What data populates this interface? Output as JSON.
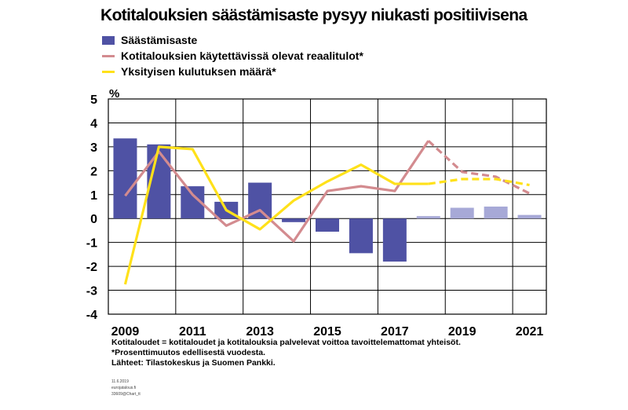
{
  "chart_data": {
    "type": "bar",
    "title": "Kotitalouksien säästämisaste pysyy niukasti positiivisena",
    "ylabel": "%",
    "ylim": [
      -4,
      5
    ],
    "yticks": [
      5,
      4,
      3,
      2,
      1,
      0,
      -1,
      -2,
      -3,
      -4
    ],
    "x": [
      2009,
      2010,
      2011,
      2012,
      2013,
      2014,
      2015,
      2016,
      2017,
      2018,
      2019,
      2020,
      2021
    ],
    "xtick_labels": [
      "2009",
      "2011",
      "2013",
      "2015",
      "2017",
      "2019",
      "2021"
    ],
    "forecast_from": 2018,
    "grid": true,
    "legend_position": "top-left",
    "series": [
      {
        "name": "Säästämisaste",
        "kind": "bar",
        "color": "#4f52a4",
        "forecast_color": "#a7a9d7",
        "values": [
          3.35,
          3.1,
          1.35,
          0.7,
          1.5,
          -0.15,
          -0.55,
          -1.45,
          -1.8,
          0.1,
          0.45,
          0.5,
          0.15
        ]
      },
      {
        "name": "Kotitalouksien käytettävissä olevat reaalitulot*",
        "kind": "line",
        "color": "#d38b8f",
        "values": [
          0.95,
          2.8,
          1.0,
          -0.3,
          0.35,
          -0.95,
          1.15,
          1.35,
          1.15,
          3.25,
          1.95,
          1.75,
          1.05
        ]
      },
      {
        "name": "Yksityisen kulutuksen määrä*",
        "kind": "line",
        "color": "#ffe11a",
        "values": [
          -2.75,
          3.0,
          2.9,
          0.35,
          -0.45,
          0.75,
          1.55,
          2.25,
          1.45,
          1.45,
          1.65,
          1.65,
          1.4
        ]
      }
    ]
  },
  "notes": {
    "line1": "Kotitaloudet = kotitaloudet ja kotitalouksia palvelevat voittoa tavoittelemattomat yhteisöt.",
    "line2": "*Prosenttimuutos edellisestä vuodesta.",
    "line3": "Lähteet: Tilastokeskus ja Suomen Pankki."
  },
  "stamp": {
    "line1": "11.6.2019",
    "line2": "eurojatalous.fi",
    "line3": "33609@Chart_tt"
  }
}
